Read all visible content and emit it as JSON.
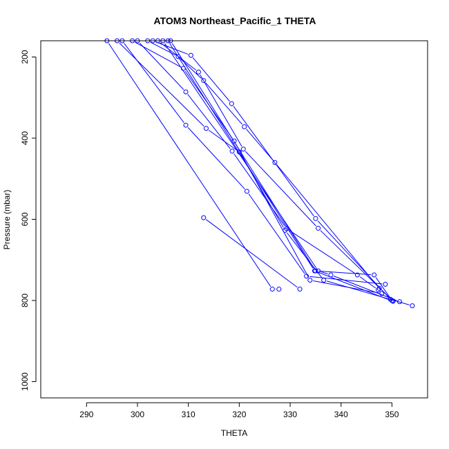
{
  "chart_data": {
    "type": "line",
    "title": "ATOM3 Northeast_Pacific_1 THETA",
    "xlabel": "THETA",
    "ylabel": "Pressure (mbar)",
    "xlim": [
      281,
      357
    ],
    "ylim": [
      1040,
      160
    ],
    "y_reversed": true,
    "x_ticks": [
      290,
      300,
      310,
      320,
      330,
      340,
      350
    ],
    "y_ticks": [
      200,
      400,
      600,
      800,
      1000
    ],
    "grid": false,
    "legend": "none",
    "color": "#0000ff",
    "marker": "open-circle",
    "series": [
      {
        "points": [
          [
            302,
            160
          ],
          [
            308,
            199
          ],
          [
            313,
            258
          ],
          [
            321,
            372
          ],
          [
            327,
            460
          ],
          [
            347.5,
            770
          ]
        ]
      },
      {
        "points": [
          [
            303,
            160
          ],
          [
            310.5,
            196
          ],
          [
            318.5,
            315
          ],
          [
            335,
            598
          ],
          [
            349.7,
            797
          ]
        ]
      },
      {
        "points": [
          [
            304,
            160
          ],
          [
            312,
            237
          ],
          [
            320.8,
            427
          ],
          [
            335.5,
            622
          ],
          [
            350.2,
            801
          ]
        ]
      },
      {
        "points": [
          [
            300,
            160
          ],
          [
            309.5,
            286
          ],
          [
            318.6,
            432
          ],
          [
            329.3,
            623
          ],
          [
            343.2,
            737
          ],
          [
            347.3,
            774
          ]
        ]
      },
      {
        "points": [
          [
            297,
            160
          ],
          [
            309.5,
            368
          ],
          [
            321.5,
            531
          ],
          [
            333.2,
            740
          ],
          [
            348.7,
            760
          ]
        ]
      },
      {
        "points": [
          [
            296,
            160
          ],
          [
            313.5,
            376
          ],
          [
            320,
            434
          ],
          [
            329,
            627
          ],
          [
            336.6,
            750
          ],
          [
            354,
            813
          ]
        ]
      },
      {
        "points": [
          [
            299,
            160
          ],
          [
            309,
            228
          ],
          [
            319,
            407
          ],
          [
            333.9,
            750
          ],
          [
            348,
            783
          ]
        ]
      },
      {
        "points": [
          [
            294,
            160
          ],
          [
            326.5,
            772
          ],
          [
            327.8,
            772
          ]
        ]
      },
      {
        "points": [
          [
            313,
            596
          ],
          [
            331.9,
            772
          ]
        ]
      },
      {
        "points": [
          [
            305,
            160
          ],
          [
            335.5,
            727
          ],
          [
            338,
            737
          ],
          [
            351.5,
            803
          ]
        ]
      },
      {
        "points": [
          [
            306.5,
            160
          ],
          [
            335,
            727
          ],
          [
            346.5,
            737
          ],
          [
            350,
            800
          ]
        ]
      },
      {
        "points": [
          [
            306,
            160
          ],
          [
            334.8,
            727
          ],
          [
            350.2,
            802
          ]
        ]
      }
    ]
  }
}
